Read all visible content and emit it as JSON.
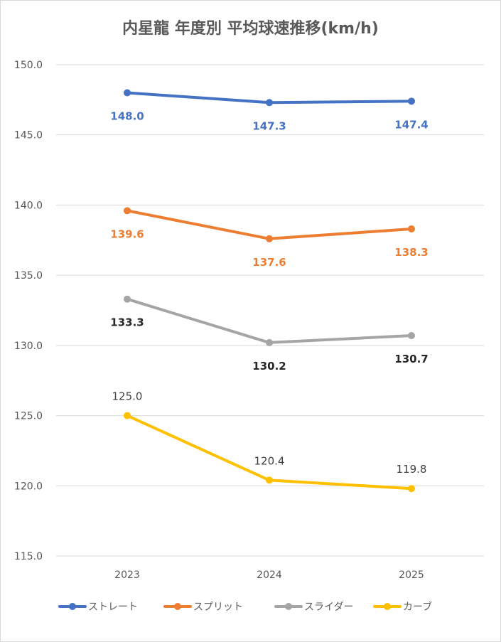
{
  "chart_data": {
    "type": "line",
    "title": "内星龍 年度別 平均球速推移(km/h)",
    "categories": [
      "2023",
      "2024",
      "2025"
    ],
    "ylim": [
      115.0,
      150.0
    ],
    "ytick_step": 5,
    "y_ticks": [
      "115.0",
      "120.0",
      "125.0",
      "130.0",
      "135.0",
      "140.0",
      "145.0",
      "150.0"
    ],
    "grid": true,
    "legend_position": "bottom",
    "series": [
      {
        "name": "ストレート",
        "color": "#4472C4",
        "label_color": "#4472C4",
        "label_weight": "bold",
        "label_pos": "below",
        "values": [
          148.0,
          147.3,
          147.4
        ],
        "labels": [
          "148.0",
          "147.3",
          "147.4"
        ]
      },
      {
        "name": "スプリット",
        "color": "#ED7D31",
        "label_color": "#ED7D31",
        "label_weight": "bold",
        "label_pos": "below",
        "values": [
          139.6,
          137.6,
          138.3
        ],
        "labels": [
          "139.6",
          "137.6",
          "138.3"
        ]
      },
      {
        "name": "スライダー",
        "color": "#A5A5A5",
        "label_color": "#262626",
        "label_weight": "bold",
        "label_pos": "below",
        "values": [
          133.3,
          130.2,
          130.7
        ],
        "labels": [
          "133.3",
          "130.2",
          "130.7"
        ]
      },
      {
        "name": "カーブ",
        "color": "#FFC000",
        "label_color": "#404040",
        "label_weight": "normal",
        "label_pos": "above",
        "values": [
          125.0,
          120.4,
          119.8
        ],
        "labels": [
          "125.0",
          "120.4",
          "119.8"
        ]
      }
    ]
  }
}
